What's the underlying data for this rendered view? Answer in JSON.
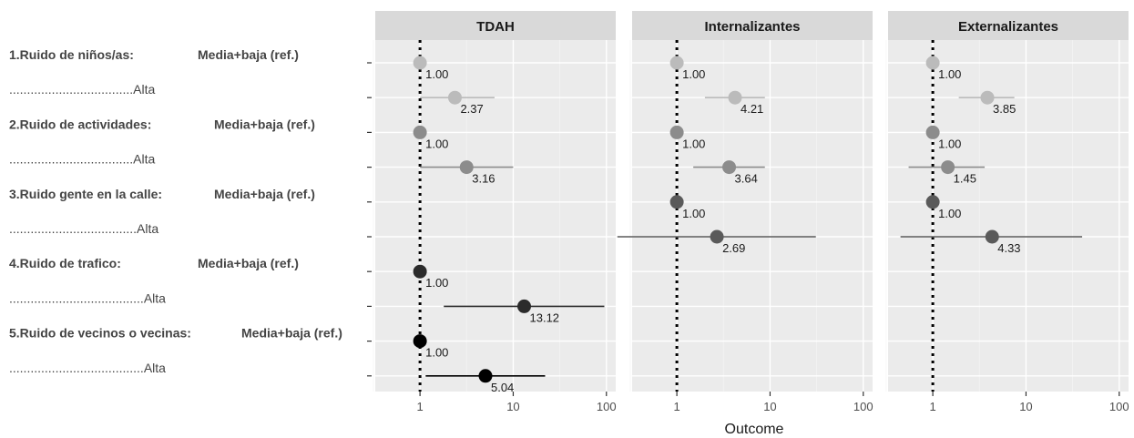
{
  "chart_data": {
    "type": "scatter",
    "subtype": "forest-plot",
    "x_scale": "log10",
    "x_ticks": [
      "1",
      "10",
      "100"
    ],
    "xlabel": "Outcome",
    "reference_line": 1,
    "grid": true,
    "rows": [
      {
        "prefix": "1.Ruido de niños/as:",
        "level": "Media+baja (ref.)",
        "color": "#bbbbbb"
      },
      {
        "prefix": "...................................",
        "level": "Alta",
        "color": "#bbbbbb"
      },
      {
        "prefix": "2.Ruido de actividades:",
        "level": "Media+baja (ref.)",
        "color": "#8c8c8c"
      },
      {
        "prefix": "...................................",
        "level": "Alta",
        "color": "#8c8c8c"
      },
      {
        "prefix": "3.Ruido gente en la calle:",
        "level": "Media+baja (ref.)",
        "color": "#5a5a5a"
      },
      {
        "prefix": "....................................",
        "level": "Alta",
        "color": "#5a5a5a"
      },
      {
        "prefix": "4.Ruido de trafico:",
        "level": "Media+baja (ref.)",
        "color": "#2b2b2b"
      },
      {
        "prefix": "......................................",
        "level": "Alta",
        "color": "#2b2b2b"
      },
      {
        "prefix": "5.Ruido de vecinos o vecinas:",
        "level": "Media+baja (ref.)",
        "color": "#000000"
      },
      {
        "prefix": "......................................",
        "level": "Alta",
        "color": "#000000"
      }
    ],
    "panels": [
      {
        "title": "TDAH",
        "points": [
          {
            "row": 0,
            "value": 1.0,
            "label": "1.00"
          },
          {
            "row": 1,
            "value": 2.37,
            "low": 1.0,
            "high": 6.3,
            "label": "2.37"
          },
          {
            "row": 2,
            "value": 1.0,
            "label": "1.00"
          },
          {
            "row": 3,
            "value": 3.16,
            "low": 1.0,
            "high": 10.0,
            "label": "3.16"
          },
          {
            "row": 6,
            "value": 1.0,
            "label": "1.00"
          },
          {
            "row": 7,
            "value": 13.12,
            "low": 1.8,
            "high": 95.0,
            "label": "13.12"
          },
          {
            "row": 8,
            "value": 1.0,
            "label": "1.00"
          },
          {
            "row": 9,
            "value": 5.04,
            "low": 1.15,
            "high": 22.0,
            "label": "5.04"
          }
        ]
      },
      {
        "title": "Internalizantes",
        "points": [
          {
            "row": 0,
            "value": 1.0,
            "label": "1.00"
          },
          {
            "row": 1,
            "value": 4.21,
            "low": 2.0,
            "high": 8.8,
            "label": "4.21"
          },
          {
            "row": 2,
            "value": 1.0,
            "label": "1.00"
          },
          {
            "row": 3,
            "value": 3.64,
            "low": 1.5,
            "high": 8.8,
            "label": "3.64"
          },
          {
            "row": 4,
            "value": 1.0,
            "label": "1.00"
          },
          {
            "row": 5,
            "value": 2.69,
            "low": 0.23,
            "high": 31.0,
            "label": "2.69"
          }
        ]
      },
      {
        "title": "Externalizantes",
        "points": [
          {
            "row": 0,
            "value": 1.0,
            "label": "1.00"
          },
          {
            "row": 1,
            "value": 3.85,
            "low": 1.9,
            "high": 7.5,
            "label": "3.85"
          },
          {
            "row": 2,
            "value": 1.0,
            "label": "1.00"
          },
          {
            "row": 3,
            "value": 1.45,
            "low": 0.55,
            "high": 3.6,
            "label": "1.45"
          },
          {
            "row": 4,
            "value": 1.0,
            "label": "1.00"
          },
          {
            "row": 5,
            "value": 4.33,
            "low": 0.45,
            "high": 40.0,
            "label": "4.33"
          }
        ]
      }
    ]
  }
}
